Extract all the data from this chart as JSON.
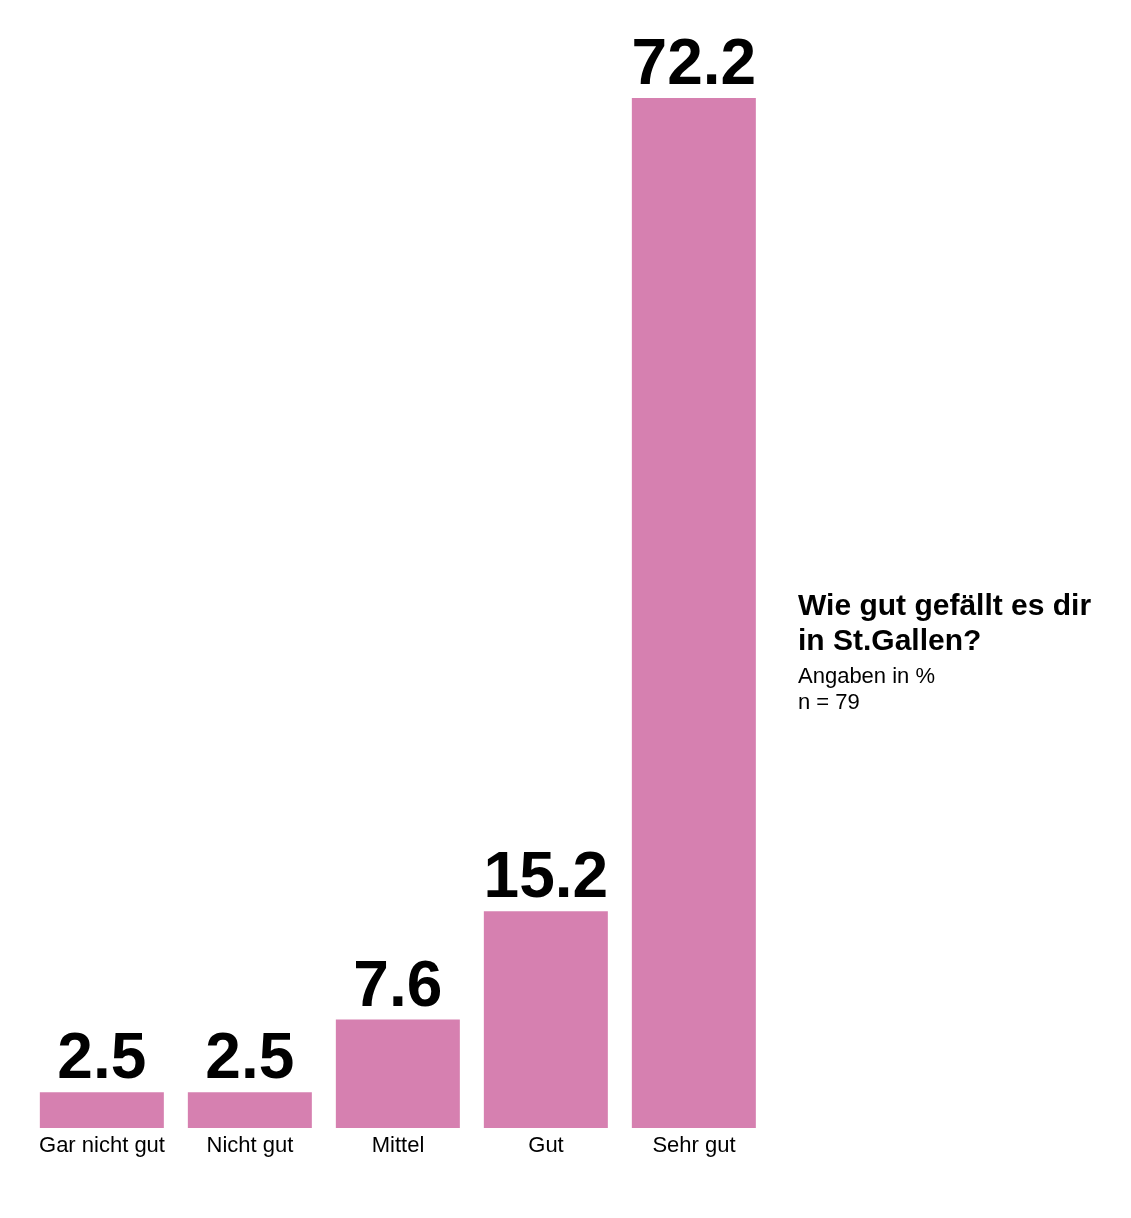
{
  "chart_data": {
    "type": "bar",
    "title": "Wie gut gefällt es dir in St.Gallen?",
    "subtitle": "Angaben in %",
    "annotations": [
      "n = 79"
    ],
    "categories": [
      "Gar nicht gut",
      "Nicht gut",
      "Mittel",
      "Gut",
      "Sehr gut"
    ],
    "values": [
      2.5,
      2.5,
      7.6,
      15.2,
      72.2
    ],
    "color": "#d680b0",
    "data_labels": true
  }
}
